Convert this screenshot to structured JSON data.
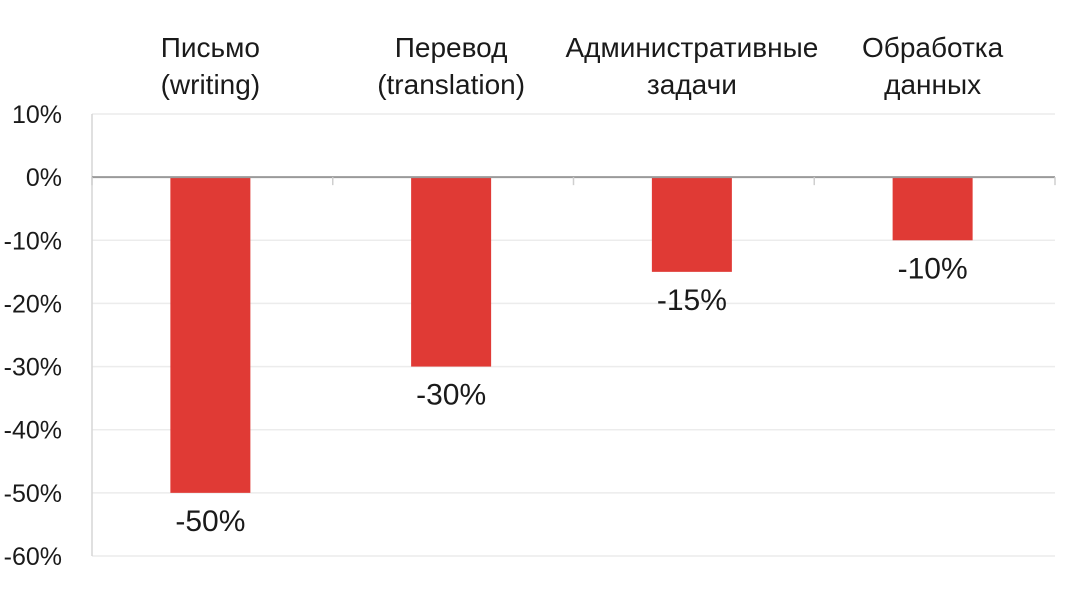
{
  "chart_data": {
    "type": "bar",
    "title": "",
    "xlabel": "",
    "ylabel": "",
    "categories": [
      [
        "Письмо",
        "(writing)"
      ],
      [
        "Перевод",
        "(translation)"
      ],
      [
        "Административные",
        "задачи"
      ],
      [
        "Обработка",
        "данных"
      ]
    ],
    "values": [
      -50,
      -30,
      -15,
      -10
    ],
    "data_labels": [
      "-50%",
      "-30%",
      "-15%",
      "-10%"
    ],
    "ylim": [
      -60,
      10
    ],
    "yticks": [
      10,
      0,
      -10,
      -20,
      -30,
      -40,
      -50,
      -60
    ],
    "ytick_labels": [
      "10%",
      "0%",
      "-10%",
      "-20%",
      "-30%",
      "-40%",
      "-50%",
      "-60%"
    ],
    "category_axis_position": "top",
    "grid": true,
    "bar_color": "#e03a35"
  }
}
